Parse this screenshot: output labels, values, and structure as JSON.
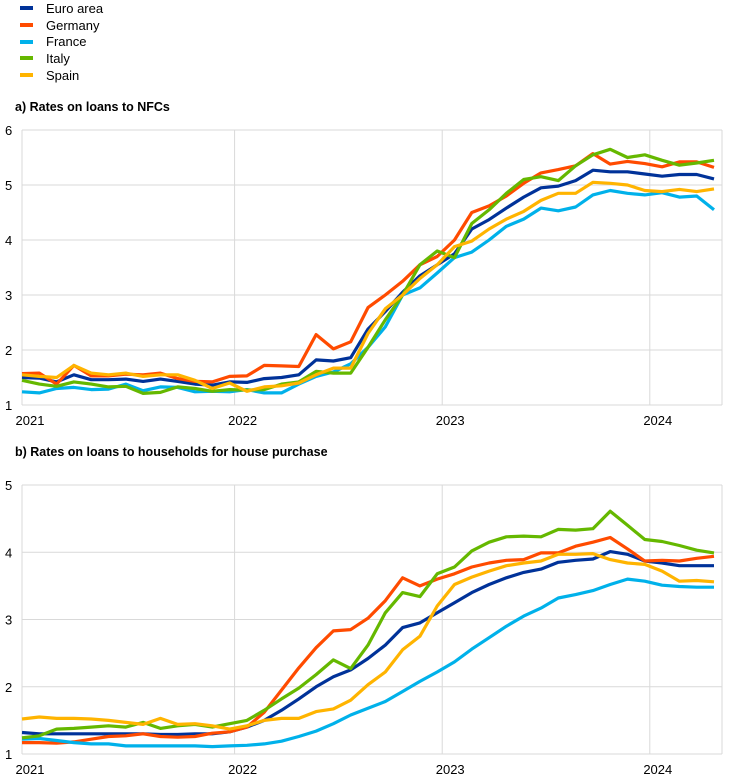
{
  "legend": [
    {
      "name": "Euro area",
      "color": "#003299"
    },
    {
      "name": "Germany",
      "color": "#ff4b00"
    },
    {
      "name": "France",
      "color": "#00b1ea"
    },
    {
      "name": "Italy",
      "color": "#65b800"
    },
    {
      "name": "Spain",
      "color": "#ffb400"
    }
  ],
  "chart_data": [
    {
      "type": "line",
      "title": "a) Rates on loans to NFCs",
      "x_start": "2021-01",
      "x_end": "2024-05",
      "frequency": "monthly",
      "x_tick_labels": [
        "2021",
        "2022",
        "2023",
        "2024"
      ],
      "ylim": [
        1,
        6
      ],
      "y_ticks": [
        1,
        2,
        3,
        4,
        5,
        6
      ],
      "grid": true,
      "series": [
        {
          "name": "Euro area",
          "values": [
            1.5,
            1.49,
            1.42,
            1.55,
            1.46,
            1.46,
            1.47,
            1.43,
            1.47,
            1.43,
            1.38,
            1.36,
            1.42,
            1.41,
            1.48,
            1.5,
            1.55,
            1.82,
            1.8,
            1.86,
            2.38,
            2.7,
            3.05,
            3.35,
            3.55,
            3.75,
            4.2,
            4.37,
            4.58,
            4.78,
            4.95,
            4.98,
            5.08,
            5.27,
            5.24,
            5.24,
            5.2,
            5.16,
            5.19,
            5.19,
            5.11
          ]
        },
        {
          "name": "Germany",
          "values": [
            1.57,
            1.58,
            1.38,
            1.72,
            1.53,
            1.53,
            1.56,
            1.55,
            1.58,
            1.48,
            1.43,
            1.42,
            1.52,
            1.53,
            1.72,
            1.71,
            1.7,
            2.28,
            2.02,
            2.15,
            2.77,
            3.0,
            3.25,
            3.55,
            3.7,
            4.0,
            4.5,
            4.62,
            4.8,
            5.03,
            5.22,
            5.28,
            5.35,
            5.57,
            5.38,
            5.43,
            5.39,
            5.33,
            5.42,
            5.42,
            5.32
          ]
        },
        {
          "name": "France",
          "values": [
            1.24,
            1.22,
            1.3,
            1.32,
            1.28,
            1.29,
            1.38,
            1.26,
            1.33,
            1.32,
            1.24,
            1.25,
            1.24,
            1.28,
            1.22,
            1.22,
            1.38,
            1.52,
            1.6,
            1.75,
            2.05,
            2.42,
            3.0,
            3.13,
            3.4,
            3.68,
            3.78,
            4.0,
            4.25,
            4.38,
            4.58,
            4.53,
            4.6,
            4.82,
            4.9,
            4.85,
            4.82,
            4.86,
            4.78,
            4.8,
            4.55
          ]
        },
        {
          "name": "Italy",
          "values": [
            1.45,
            1.38,
            1.34,
            1.42,
            1.38,
            1.33,
            1.34,
            1.21,
            1.23,
            1.33,
            1.3,
            1.25,
            1.28,
            1.27,
            1.28,
            1.38,
            1.42,
            1.61,
            1.58,
            1.58,
            2.05,
            2.55,
            3.0,
            3.55,
            3.8,
            3.68,
            4.3,
            4.55,
            4.85,
            5.1,
            5.15,
            5.08,
            5.35,
            5.55,
            5.65,
            5.5,
            5.55,
            5.45,
            5.36,
            5.4,
            5.45
          ]
        },
        {
          "name": "Spain",
          "values": [
            1.55,
            1.52,
            1.5,
            1.72,
            1.58,
            1.55,
            1.58,
            1.52,
            1.55,
            1.55,
            1.45,
            1.3,
            1.4,
            1.25,
            1.33,
            1.35,
            1.4,
            1.55,
            1.67,
            1.67,
            2.3,
            2.75,
            3.0,
            3.3,
            3.55,
            3.88,
            3.98,
            4.2,
            4.38,
            4.52,
            4.72,
            4.85,
            4.85,
            5.05,
            5.03,
            5.0,
            4.9,
            4.88,
            4.92,
            4.88,
            4.93
          ]
        }
      ]
    },
    {
      "type": "line",
      "title": "b) Rates on loans to households for house purchase",
      "x_start": "2021-01",
      "x_end": "2024-05",
      "frequency": "monthly",
      "x_tick_labels": [
        "2021",
        "2022",
        "2023",
        "2024"
      ],
      "ylim": [
        1,
        5
      ],
      "y_ticks": [
        1,
        2,
        3,
        4,
        5
      ],
      "grid": true,
      "series": [
        {
          "name": "Euro area",
          "values": [
            1.32,
            1.3,
            1.3,
            1.3,
            1.3,
            1.3,
            1.3,
            1.3,
            1.29,
            1.29,
            1.3,
            1.3,
            1.33,
            1.4,
            1.5,
            1.65,
            1.82,
            2.0,
            2.15,
            2.25,
            2.42,
            2.62,
            2.88,
            2.95,
            3.1,
            3.25,
            3.4,
            3.52,
            3.62,
            3.7,
            3.75,
            3.85,
            3.88,
            3.9,
            4.01,
            3.97,
            3.87,
            3.84,
            3.8,
            3.8,
            3.8
          ]
        },
        {
          "name": "Germany",
          "values": [
            1.17,
            1.17,
            1.16,
            1.18,
            1.22,
            1.26,
            1.27,
            1.3,
            1.26,
            1.25,
            1.26,
            1.31,
            1.33,
            1.4,
            1.62,
            1.95,
            2.28,
            2.58,
            2.83,
            2.85,
            3.02,
            3.28,
            3.62,
            3.5,
            3.6,
            3.68,
            3.78,
            3.84,
            3.88,
            3.89,
            3.99,
            3.99,
            4.09,
            4.15,
            4.22,
            4.05,
            3.87,
            3.88,
            3.87,
            3.91,
            3.94
          ]
        },
        {
          "name": "France",
          "values": [
            1.22,
            1.23,
            1.2,
            1.17,
            1.15,
            1.15,
            1.12,
            1.12,
            1.12,
            1.12,
            1.12,
            1.11,
            1.12,
            1.13,
            1.15,
            1.19,
            1.26,
            1.34,
            1.45,
            1.58,
            1.68,
            1.78,
            1.93,
            2.08,
            2.22,
            2.37,
            2.56,
            2.73,
            2.9,
            3.05,
            3.17,
            3.32,
            3.37,
            3.43,
            3.52,
            3.6,
            3.57,
            3.51,
            3.49,
            3.48,
            3.48
          ]
        },
        {
          "name": "Italy",
          "values": [
            1.24,
            1.27,
            1.37,
            1.38,
            1.4,
            1.42,
            1.4,
            1.47,
            1.38,
            1.42,
            1.44,
            1.4,
            1.45,
            1.5,
            1.65,
            1.82,
            1.98,
            2.18,
            2.4,
            2.27,
            2.62,
            3.1,
            3.4,
            3.34,
            3.68,
            3.78,
            4.02,
            4.15,
            4.23,
            4.24,
            4.23,
            4.34,
            4.33,
            4.35,
            4.61,
            4.4,
            4.19,
            4.16,
            4.1,
            4.03,
            3.99
          ]
        },
        {
          "name": "Spain",
          "values": [
            1.52,
            1.55,
            1.53,
            1.53,
            1.52,
            1.5,
            1.47,
            1.44,
            1.53,
            1.44,
            1.45,
            1.42,
            1.37,
            1.42,
            1.5,
            1.53,
            1.53,
            1.63,
            1.67,
            1.8,
            2.03,
            2.22,
            2.55,
            2.75,
            3.2,
            3.52,
            3.63,
            3.72,
            3.8,
            3.84,
            3.87,
            3.97,
            3.97,
            3.98,
            3.89,
            3.84,
            3.82,
            3.72,
            3.57,
            3.58,
            3.56
          ]
        }
      ]
    }
  ]
}
